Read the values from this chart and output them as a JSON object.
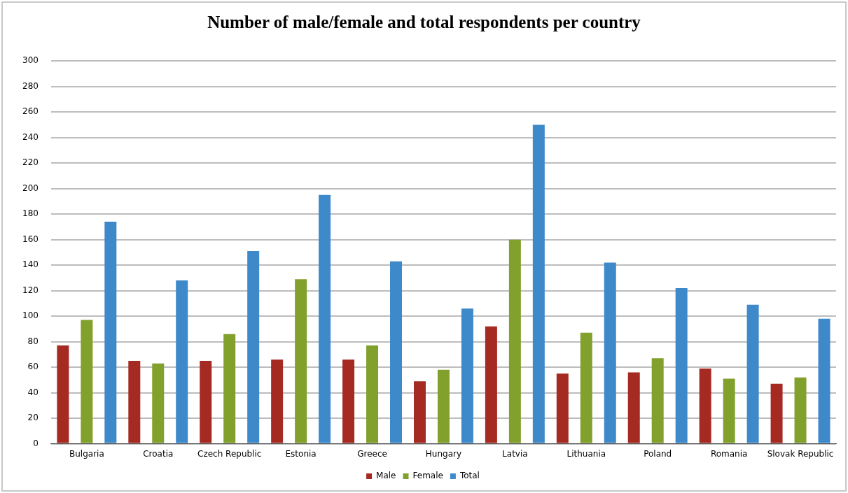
{
  "chart_data": {
    "type": "bar",
    "title": "Number of male/female and total respondents per country",
    "categories": [
      "Bulgaria",
      "Croatia",
      "Czech Republic",
      "Estonia",
      "Greece",
      "Hungary",
      "Latvia",
      "Lithuania",
      "Poland",
      "Romania",
      "Slovak Republic"
    ],
    "series": [
      {
        "name": "Male",
        "color": "#a52a21",
        "values": [
          77,
          65,
          65,
          66,
          66,
          49,
          92,
          55,
          56,
          59,
          47
        ]
      },
      {
        "name": "Female",
        "color": "#82a02c",
        "values": [
          97,
          63,
          86,
          129,
          77,
          58,
          160,
          87,
          67,
          51,
          52
        ]
      },
      {
        "name": "Total",
        "color": "#3d89c9",
        "values": [
          174,
          128,
          151,
          195,
          143,
          106,
          250,
          142,
          122,
          109,
          98
        ]
      }
    ],
    "ylim": [
      0,
      300
    ],
    "yticks": [
      0,
      20,
      40,
      60,
      80,
      100,
      120,
      140,
      160,
      180,
      200,
      220,
      240,
      260,
      280,
      300
    ],
    "grid": "y",
    "legend": "bottom"
  }
}
